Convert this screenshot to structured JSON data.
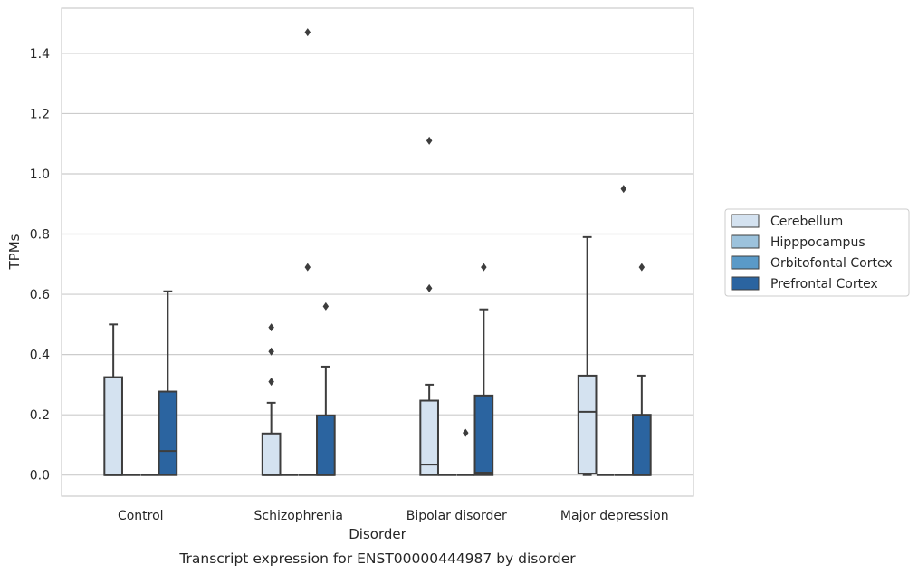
{
  "chart_data": {
    "type": "box",
    "caption": "Transcript expression for ENST00000444987 by disorder",
    "xlabel": "Disorder",
    "ylabel": "TPMs",
    "ylim": [
      -0.07,
      1.55
    ],
    "yticks": [
      "0.0",
      "0.2",
      "0.4",
      "0.6",
      "0.8",
      "1.0",
      "1.2",
      "1.4"
    ],
    "ytick_values": [
      0.0,
      0.2,
      0.4,
      0.6,
      0.8,
      1.0,
      1.2,
      1.4
    ],
    "grid": "horizontal",
    "legend_position": "right",
    "categories": [
      "Control",
      "Schizophrenia",
      "Bipolar disorder",
      "Major depression"
    ],
    "series": [
      {
        "name": "Cerebellum",
        "color": "#d4e2f0",
        "boxes": [
          {
            "q1": 0.0,
            "median": 0.0,
            "q3": 0.325,
            "whisker_low": 0.0,
            "whisker_high": 0.5,
            "outliers": []
          },
          {
            "q1": 0.0,
            "median": 0.0,
            "q3": 0.138,
            "whisker_low": 0.0,
            "whisker_high": 0.24,
            "outliers": [
              0.31,
              0.41,
              0.49
            ]
          },
          {
            "q1": 0.0,
            "median": 0.035,
            "q3": 0.247,
            "whisker_low": 0.0,
            "whisker_high": 0.3,
            "outliers": [
              0.62,
              1.11
            ]
          },
          {
            "q1": 0.005,
            "median": 0.21,
            "q3": 0.33,
            "whisker_low": 0.0,
            "whisker_high": 0.79,
            "outliers": []
          }
        ]
      },
      {
        "name": "Hipppocampus",
        "color": "#9cc2dc",
        "boxes": [
          {
            "q1": 0.0,
            "median": 0.0,
            "q3": 0.0,
            "whisker_low": 0.0,
            "whisker_high": 0.0,
            "outliers": []
          },
          {
            "q1": 0.0,
            "median": 0.0,
            "q3": 0.0,
            "whisker_low": 0.0,
            "whisker_high": 0.0,
            "outliers": []
          },
          {
            "q1": 0.0,
            "median": 0.0,
            "q3": 0.0,
            "whisker_low": 0.0,
            "whisker_high": 0.0,
            "outliers": []
          },
          {
            "q1": 0.0,
            "median": 0.0,
            "q3": 0.0,
            "whisker_low": 0.0,
            "whisker_high": 0.0,
            "outliers": []
          }
        ]
      },
      {
        "name": "Orbitofontal Cortex",
        "color": "#5a9ac8",
        "boxes": [
          {
            "q1": 0.0,
            "median": 0.0,
            "q3": 0.0,
            "whisker_low": 0.0,
            "whisker_high": 0.0,
            "outliers": []
          },
          {
            "q1": 0.0,
            "median": 0.0,
            "q3": 0.0,
            "whisker_low": 0.0,
            "whisker_high": 0.0,
            "outliers": [
              0.69,
              1.47
            ]
          },
          {
            "q1": 0.0,
            "median": 0.0,
            "q3": 0.0,
            "whisker_low": 0.0,
            "whisker_high": 0.0,
            "outliers": [
              0.14
            ]
          },
          {
            "q1": 0.0,
            "median": 0.0,
            "q3": 0.0,
            "whisker_low": 0.0,
            "whisker_high": 0.0,
            "outliers": [
              0.95
            ]
          }
        ]
      },
      {
        "name": "Prefrontal Cortex",
        "color": "#2b64a0",
        "boxes": [
          {
            "q1": 0.0,
            "median": 0.08,
            "q3": 0.277,
            "whisker_low": 0.0,
            "whisker_high": 0.61,
            "outliers": []
          },
          {
            "q1": 0.0,
            "median": 0.0,
            "q3": 0.198,
            "whisker_low": 0.0,
            "whisker_high": 0.36,
            "outliers": [
              0.56
            ]
          },
          {
            "q1": 0.0,
            "median": 0.008,
            "q3": 0.264,
            "whisker_low": 0.0,
            "whisker_high": 0.55,
            "outliers": [
              0.69
            ]
          },
          {
            "q1": 0.0,
            "median": 0.0,
            "q3": 0.2,
            "whisker_low": 0.0,
            "whisker_high": 0.33,
            "outliers": [
              0.69
            ]
          }
        ]
      }
    ]
  }
}
